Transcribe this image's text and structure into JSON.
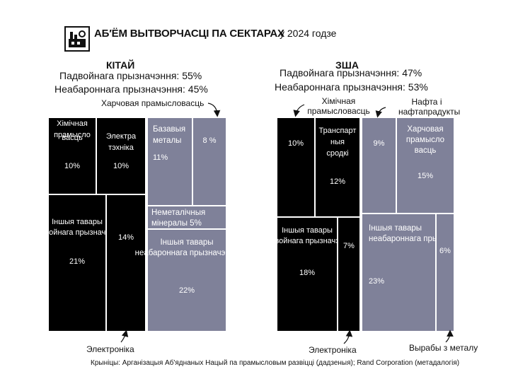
{
  "header": {
    "title": "АБ′ЁМ ВЫТВОРЧАСЦІ ПА СЕКТАРАХ",
    "year": "у 2024 годзе"
  },
  "colors": {
    "defense": "#000000",
    "civilian": "#7f8199",
    "text_on_dark": "#ffffff",
    "border": "#ffffff"
  },
  "chart_data": [
    {
      "type": "treemap",
      "country": "КІТАЙ",
      "defense_line": "Падвойнага прызначэння: 55%",
      "civilian_line": "Неабароннага прызначэння: 45%",
      "defense_share": 55,
      "civilian_share": 45,
      "cells": [
        {
          "group": "defense",
          "label": "Хімічная прамысло васць",
          "value": 10
        },
        {
          "group": "defense",
          "label": "Электра тэхніка",
          "value": 10
        },
        {
          "group": "defense",
          "label": "Іншыя тавары падвойнага прызначэння",
          "value": 21
        },
        {
          "group": "defense",
          "label": "Электроніка",
          "value": 14
        },
        {
          "group": "civilian",
          "label": "Базавыя металы",
          "value": 11
        },
        {
          "group": "civilian",
          "label": "Харчовая прамысловасць",
          "value": 8
        },
        {
          "group": "civilian",
          "label": "Неметалічныя мінералы",
          "value": 5
        },
        {
          "group": "civilian",
          "label": "Іншыя тавары неабароннага прызначэння",
          "value": 22
        }
      ],
      "value_labels": [
        "10%",
        "10%",
        "21%",
        "14%",
        "11%",
        "8 %",
        "5%",
        "22%"
      ],
      "callouts": [
        "Харчовая прамысловасць",
        "Электроніка"
      ]
    },
    {
      "type": "treemap",
      "country": "ЗША",
      "defense_line": "Падвойнага прызначэння: 47%",
      "civilian_line": "Неабароннага прызначэння: 53%",
      "defense_share": 47,
      "civilian_share": 53,
      "cells": [
        {
          "group": "defense",
          "label": "Хімічная прамысловасць",
          "value": 10
        },
        {
          "group": "defense",
          "label": "Транспарт ныя сродкі",
          "value": 12
        },
        {
          "group": "defense",
          "label": "Іншыя тавары падвойнага прызначэння",
          "value": 18
        },
        {
          "group": "defense",
          "label": "Электроніка",
          "value": 7
        },
        {
          "group": "civilian",
          "label": "Нафта і нафтапрадукты",
          "value": 9
        },
        {
          "group": "civilian",
          "label": "Харчовая прамысло васць",
          "value": 15
        },
        {
          "group": "civilian",
          "label": "Іншыя тавары неабароннага прызначэння",
          "value": 23
        },
        {
          "group": "civilian",
          "label": "Вырабы з металу",
          "value": 6
        }
      ],
      "value_labels": [
        "10%",
        "12%",
        "18%",
        "7%",
        "9%",
        "15%",
        "23%",
        "6%"
      ],
      "callouts": [
        "Хімічная прамысловасць",
        "Нафта і нафтапрадукты",
        "Электроніка",
        "Вырабы з металу"
      ]
    }
  ],
  "source": "Крыніцы: Арганізацыя Аб'яднаных Нацый па прамысловым развіцці (дадзеныя); Rand Corporation (метадалогія)"
}
